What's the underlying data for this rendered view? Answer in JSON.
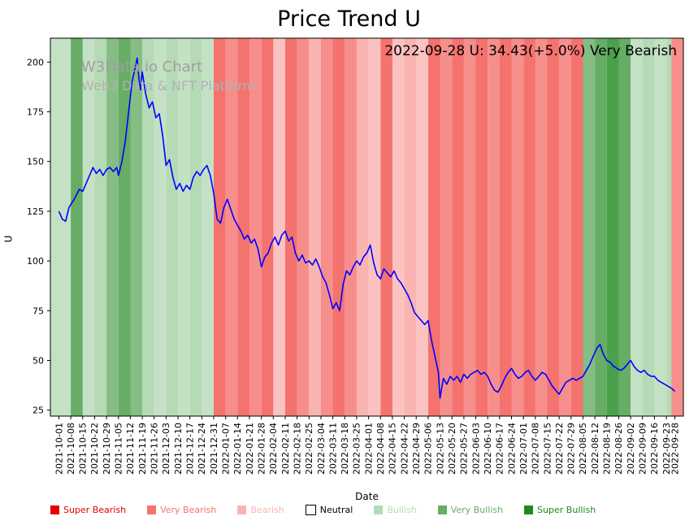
{
  "chart_data": {
    "type": "line",
    "title": "Price Trend U",
    "xlabel": "Date",
    "ylabel": "U",
    "ylim": [
      22,
      212
    ],
    "xlim_days": [
      -5,
      367
    ],
    "yticks": [
      25,
      50,
      75,
      100,
      125,
      150,
      175,
      200
    ],
    "x_tick_days": [
      0,
      7,
      14,
      21,
      28,
      35,
      42,
      49,
      56,
      63,
      70,
      77,
      84,
      91,
      98,
      105,
      112,
      119,
      126,
      133,
      140,
      147,
      154,
      161,
      168,
      175,
      182,
      189,
      196,
      203,
      210,
      217,
      224,
      231,
      238,
      245,
      252,
      259,
      266,
      273,
      280,
      287,
      294,
      301,
      308,
      315,
      322,
      329,
      336,
      343,
      350,
      357,
      362
    ],
    "x_tick_labels": [
      "2021-10-01",
      "2021-10-08",
      "2021-10-15",
      "2021-10-22",
      "2021-10-29",
      "2021-11-05",
      "2021-11-12",
      "2021-11-19",
      "2021-11-26",
      "2021-12-03",
      "2021-12-10",
      "2021-12-17",
      "2021-12-24",
      "2021-12-31",
      "2022-01-07",
      "2022-01-14",
      "2022-01-21",
      "2022-01-28",
      "2022-02-04",
      "2022-02-11",
      "2022-02-18",
      "2022-02-25",
      "2022-03-04",
      "2022-03-11",
      "2022-03-18",
      "2022-03-25",
      "2022-04-01",
      "2022-04-08",
      "2022-04-15",
      "2022-04-22",
      "2022-04-29",
      "2022-05-06",
      "2022-05-13",
      "2022-05-20",
      "2022-05-27",
      "2022-06-03",
      "2022-06-10",
      "2022-06-17",
      "2022-06-24",
      "2022-07-01",
      "2022-07-08",
      "2022-07-15",
      "2022-07-22",
      "2022-07-29",
      "2022-08-05",
      "2022-08-12",
      "2022-08-19",
      "2022-08-26",
      "2022-09-02",
      "2022-09-09",
      "2022-09-16",
      "2022-09-23",
      "2022-09-28"
    ],
    "annotation": "2022-09-28 U: 34.43(+5.0%) Very Bearish",
    "watermark_line1": "W3Data.io Chart",
    "watermark_line2": "Web3 Data & NFT Platform",
    "line": {
      "name": "U",
      "color": "#0000ff",
      "x_days": [
        0,
        2,
        4,
        6,
        9,
        12,
        14,
        16,
        18,
        20,
        22,
        24,
        26,
        28,
        30,
        32,
        34,
        35,
        37,
        39,
        41,
        43,
        45,
        46,
        47,
        48,
        49,
        51,
        53,
        55,
        57,
        59,
        61,
        63,
        65,
        67,
        69,
        71,
        73,
        75,
        77,
        79,
        81,
        83,
        85,
        87,
        89,
        91,
        93,
        95,
        97,
        99,
        101,
        103,
        105,
        107,
        109,
        111,
        113,
        115,
        117,
        119,
        121,
        123,
        125,
        127,
        129,
        131,
        133,
        135,
        137,
        139,
        141,
        143,
        145,
        147,
        149,
        151,
        153,
        155,
        157,
        159,
        161,
        163,
        165,
        167,
        169,
        171,
        173,
        175,
        177,
        179,
        181,
        183,
        185,
        187,
        189,
        191,
        193,
        195,
        197,
        199,
        201,
        203,
        205,
        207,
        209,
        211,
        213,
        215,
        217,
        219,
        221,
        223,
        224,
        226,
        228,
        230,
        232,
        234,
        236,
        238,
        240,
        242,
        244,
        246,
        248,
        250,
        252,
        254,
        256,
        258,
        260,
        262,
        264,
        266,
        268,
        270,
        272,
        274,
        276,
        278,
        280,
        282,
        284,
        286,
        288,
        290,
        292,
        294,
        296,
        298,
        300,
        302,
        304,
        306,
        308,
        310,
        312,
        314,
        316,
        318,
        320,
        322,
        324,
        326,
        328,
        330,
        332,
        334,
        336,
        338,
        340,
        342,
        344,
        346,
        348,
        350,
        352,
        354,
        356,
        358,
        360,
        362
      ],
      "y": [
        125,
        121,
        120,
        127,
        131,
        136,
        135,
        139,
        143,
        147,
        144,
        146,
        143,
        146,
        147,
        145,
        147,
        143,
        150,
        160,
        175,
        190,
        198,
        202,
        192,
        186,
        195,
        184,
        177,
        180,
        172,
        174,
        163,
        148,
        151,
        142,
        136,
        139,
        135,
        138,
        136,
        142,
        145,
        143,
        146,
        148,
        143,
        134,
        121,
        119,
        127,
        131,
        126,
        121,
        118,
        115,
        111,
        113,
        109,
        111,
        106,
        97,
        102,
        104,
        109,
        112,
        108,
        113,
        115,
        110,
        112,
        104,
        100,
        103,
        99,
        100,
        98,
        101,
        97,
        92,
        89,
        83,
        76,
        79,
        75,
        88,
        95,
        93,
        97,
        100,
        98,
        102,
        104,
        108,
        99,
        93,
        91,
        96,
        94,
        92,
        95,
        91,
        89,
        86,
        83,
        79,
        74,
        72,
        70,
        68,
        70,
        60,
        52,
        44,
        31,
        41,
        38,
        42,
        40,
        42,
        39,
        43,
        41,
        43,
        44,
        45,
        43,
        44,
        42,
        38,
        35,
        34,
        37,
        41,
        44,
        46,
        43,
        41,
        42,
        44,
        45,
        42,
        40,
        42,
        44,
        43,
        40,
        37,
        35,
        33,
        36,
        39,
        40,
        41,
        40,
        41,
        42,
        45,
        48,
        52,
        56,
        58,
        53,
        50,
        49,
        47,
        46,
        45,
        46,
        48,
        50,
        47,
        45,
        44,
        45,
        43,
        42,
        42,
        40,
        39,
        38,
        37,
        36,
        34.43
      ]
    },
    "sentiment_colors": {
      "Super Bearish": "#e60000",
      "Very Bearish": "#f4736f",
      "Bearish": "#f9b4b2",
      "Neutral": "#ffffff",
      "Bullish": "#b6dab6",
      "Very Bullish": "#66ad66",
      "Super Bullish": "#1e8a1e"
    },
    "bands": [
      {
        "start": -5,
        "end": 7,
        "s": "Bullish"
      },
      {
        "start": 7,
        "end": 14,
        "s": "Very Bullish"
      },
      {
        "start": 14,
        "end": 21,
        "s": "Bullish"
      },
      {
        "start": 21,
        "end": 28,
        "s": "Bullish"
      },
      {
        "start": 28,
        "end": 35,
        "s": "Very Bullish"
      },
      {
        "start": 35,
        "end": 42,
        "s": "Very Bullish"
      },
      {
        "start": 42,
        "end": 49,
        "s": "Very Bullish"
      },
      {
        "start": 49,
        "end": 56,
        "s": "Bullish"
      },
      {
        "start": 56,
        "end": 63,
        "s": "Bullish"
      },
      {
        "start": 63,
        "end": 70,
        "s": "Bullish"
      },
      {
        "start": 70,
        "end": 77,
        "s": "Bullish"
      },
      {
        "start": 77,
        "end": 84,
        "s": "Bullish"
      },
      {
        "start": 84,
        "end": 91,
        "s": "Bullish"
      },
      {
        "start": 91,
        "end": 98,
        "s": "Very Bearish"
      },
      {
        "start": 98,
        "end": 105,
        "s": "Very Bearish"
      },
      {
        "start": 105,
        "end": 112,
        "s": "Very Bearish"
      },
      {
        "start": 112,
        "end": 119,
        "s": "Very Bearish"
      },
      {
        "start": 119,
        "end": 126,
        "s": "Very Bearish"
      },
      {
        "start": 126,
        "end": 133,
        "s": "Bearish"
      },
      {
        "start": 133,
        "end": 140,
        "s": "Very Bearish"
      },
      {
        "start": 140,
        "end": 147,
        "s": "Very Bearish"
      },
      {
        "start": 147,
        "end": 154,
        "s": "Bearish"
      },
      {
        "start": 154,
        "end": 161,
        "s": "Very Bearish"
      },
      {
        "start": 161,
        "end": 168,
        "s": "Very Bearish"
      },
      {
        "start": 168,
        "end": 175,
        "s": "Very Bearish"
      },
      {
        "start": 175,
        "end": 182,
        "s": "Bearish"
      },
      {
        "start": 182,
        "end": 189,
        "s": "Bearish"
      },
      {
        "start": 189,
        "end": 196,
        "s": "Very Bearish"
      },
      {
        "start": 196,
        "end": 203,
        "s": "Bearish"
      },
      {
        "start": 203,
        "end": 210,
        "s": "Bearish"
      },
      {
        "start": 210,
        "end": 217,
        "s": "Bearish"
      },
      {
        "start": 217,
        "end": 224,
        "s": "Very Bearish"
      },
      {
        "start": 224,
        "end": 231,
        "s": "Very Bearish"
      },
      {
        "start": 231,
        "end": 238,
        "s": "Very Bearish"
      },
      {
        "start": 238,
        "end": 245,
        "s": "Very Bearish"
      },
      {
        "start": 245,
        "end": 252,
        "s": "Very Bearish"
      },
      {
        "start": 252,
        "end": 259,
        "s": "Very Bearish"
      },
      {
        "start": 259,
        "end": 266,
        "s": "Very Bearish"
      },
      {
        "start": 266,
        "end": 273,
        "s": "Very Bearish"
      },
      {
        "start": 273,
        "end": 280,
        "s": "Very Bearish"
      },
      {
        "start": 280,
        "end": 287,
        "s": "Very Bearish"
      },
      {
        "start": 287,
        "end": 294,
        "s": "Very Bearish"
      },
      {
        "start": 294,
        "end": 301,
        "s": "Very Bearish"
      },
      {
        "start": 301,
        "end": 308,
        "s": "Very Bearish"
      },
      {
        "start": 308,
        "end": 315,
        "s": "Very Bullish"
      },
      {
        "start": 315,
        "end": 322,
        "s": "Very Bullish"
      },
      {
        "start": 322,
        "end": 329,
        "s": "Super Bullish"
      },
      {
        "start": 329,
        "end": 336,
        "s": "Very Bullish"
      },
      {
        "start": 336,
        "end": 343,
        "s": "Bullish"
      },
      {
        "start": 343,
        "end": 350,
        "s": "Bullish"
      },
      {
        "start": 350,
        "end": 357,
        "s": "Bullish"
      },
      {
        "start": 357,
        "end": 360,
        "s": "Bullish"
      },
      {
        "start": 360,
        "end": 367,
        "s": "Very Bearish"
      }
    ],
    "legend": [
      {
        "label": "Super Bearish",
        "color": "#e60000",
        "text_color": "#e60000"
      },
      {
        "label": "Very Bearish",
        "color": "#f4736f",
        "text_color": "#f4736f"
      },
      {
        "label": "Bearish",
        "color": "#f9b4b2",
        "text_color": "#f9b4b2"
      },
      {
        "label": "Neutral",
        "color": "#ffffff",
        "text_color": "#000000"
      },
      {
        "label": "Bullish",
        "color": "#b6dab6",
        "text_color": "#b6dab6"
      },
      {
        "label": "Very Bullish",
        "color": "#66ad66",
        "text_color": "#66ad66"
      },
      {
        "label": "Super Bullish",
        "color": "#1e8a1e",
        "text_color": "#1e8a1e"
      }
    ],
    "legend_position": "bottom",
    "grid": false
  }
}
